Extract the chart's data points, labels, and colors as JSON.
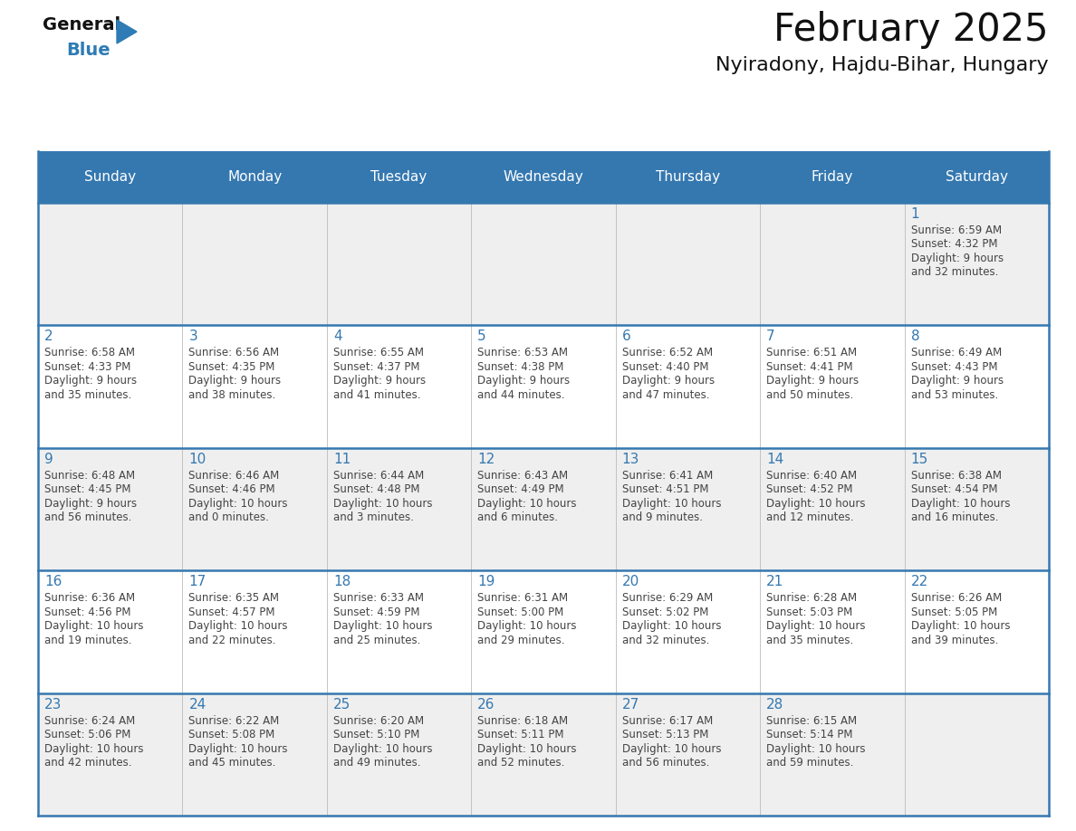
{
  "title": "February 2025",
  "subtitle": "Nyiradony, Hajdu-Bihar, Hungary",
  "header_color": "#3578B0",
  "header_text_color": "#FFFFFF",
  "cell_bg_white": "#FFFFFF",
  "cell_bg_gray": "#EFEFEF",
  "day_number_color": "#3578B0",
  "text_color": "#444444",
  "border_color": "#3578B0",
  "grid_line_color": "#BBBBBB",
  "days_of_week": [
    "Sunday",
    "Monday",
    "Tuesday",
    "Wednesday",
    "Thursday",
    "Friday",
    "Saturday"
  ],
  "weeks": [
    [
      {
        "day": "",
        "lines": []
      },
      {
        "day": "",
        "lines": []
      },
      {
        "day": "",
        "lines": []
      },
      {
        "day": "",
        "lines": []
      },
      {
        "day": "",
        "lines": []
      },
      {
        "day": "",
        "lines": []
      },
      {
        "day": "1",
        "lines": [
          "Sunrise: 6:59 AM",
          "Sunset: 4:32 PM",
          "Daylight: 9 hours",
          "and 32 minutes."
        ]
      }
    ],
    [
      {
        "day": "2",
        "lines": [
          "Sunrise: 6:58 AM",
          "Sunset: 4:33 PM",
          "Daylight: 9 hours",
          "and 35 minutes."
        ]
      },
      {
        "day": "3",
        "lines": [
          "Sunrise: 6:56 AM",
          "Sunset: 4:35 PM",
          "Daylight: 9 hours",
          "and 38 minutes."
        ]
      },
      {
        "day": "4",
        "lines": [
          "Sunrise: 6:55 AM",
          "Sunset: 4:37 PM",
          "Daylight: 9 hours",
          "and 41 minutes."
        ]
      },
      {
        "day": "5",
        "lines": [
          "Sunrise: 6:53 AM",
          "Sunset: 4:38 PM",
          "Daylight: 9 hours",
          "and 44 minutes."
        ]
      },
      {
        "day": "6",
        "lines": [
          "Sunrise: 6:52 AM",
          "Sunset: 4:40 PM",
          "Daylight: 9 hours",
          "and 47 minutes."
        ]
      },
      {
        "day": "7",
        "lines": [
          "Sunrise: 6:51 AM",
          "Sunset: 4:41 PM",
          "Daylight: 9 hours",
          "and 50 minutes."
        ]
      },
      {
        "day": "8",
        "lines": [
          "Sunrise: 6:49 AM",
          "Sunset: 4:43 PM",
          "Daylight: 9 hours",
          "and 53 minutes."
        ]
      }
    ],
    [
      {
        "day": "9",
        "lines": [
          "Sunrise: 6:48 AM",
          "Sunset: 4:45 PM",
          "Daylight: 9 hours",
          "and 56 minutes."
        ]
      },
      {
        "day": "10",
        "lines": [
          "Sunrise: 6:46 AM",
          "Sunset: 4:46 PM",
          "Daylight: 10 hours",
          "and 0 minutes."
        ]
      },
      {
        "day": "11",
        "lines": [
          "Sunrise: 6:44 AM",
          "Sunset: 4:48 PM",
          "Daylight: 10 hours",
          "and 3 minutes."
        ]
      },
      {
        "day": "12",
        "lines": [
          "Sunrise: 6:43 AM",
          "Sunset: 4:49 PM",
          "Daylight: 10 hours",
          "and 6 minutes."
        ]
      },
      {
        "day": "13",
        "lines": [
          "Sunrise: 6:41 AM",
          "Sunset: 4:51 PM",
          "Daylight: 10 hours",
          "and 9 minutes."
        ]
      },
      {
        "day": "14",
        "lines": [
          "Sunrise: 6:40 AM",
          "Sunset: 4:52 PM",
          "Daylight: 10 hours",
          "and 12 minutes."
        ]
      },
      {
        "day": "15",
        "lines": [
          "Sunrise: 6:38 AM",
          "Sunset: 4:54 PM",
          "Daylight: 10 hours",
          "and 16 minutes."
        ]
      }
    ],
    [
      {
        "day": "16",
        "lines": [
          "Sunrise: 6:36 AM",
          "Sunset: 4:56 PM",
          "Daylight: 10 hours",
          "and 19 minutes."
        ]
      },
      {
        "day": "17",
        "lines": [
          "Sunrise: 6:35 AM",
          "Sunset: 4:57 PM",
          "Daylight: 10 hours",
          "and 22 minutes."
        ]
      },
      {
        "day": "18",
        "lines": [
          "Sunrise: 6:33 AM",
          "Sunset: 4:59 PM",
          "Daylight: 10 hours",
          "and 25 minutes."
        ]
      },
      {
        "day": "19",
        "lines": [
          "Sunrise: 6:31 AM",
          "Sunset: 5:00 PM",
          "Daylight: 10 hours",
          "and 29 minutes."
        ]
      },
      {
        "day": "20",
        "lines": [
          "Sunrise: 6:29 AM",
          "Sunset: 5:02 PM",
          "Daylight: 10 hours",
          "and 32 minutes."
        ]
      },
      {
        "day": "21",
        "lines": [
          "Sunrise: 6:28 AM",
          "Sunset: 5:03 PM",
          "Daylight: 10 hours",
          "and 35 minutes."
        ]
      },
      {
        "day": "22",
        "lines": [
          "Sunrise: 6:26 AM",
          "Sunset: 5:05 PM",
          "Daylight: 10 hours",
          "and 39 minutes."
        ]
      }
    ],
    [
      {
        "day": "23",
        "lines": [
          "Sunrise: 6:24 AM",
          "Sunset: 5:06 PM",
          "Daylight: 10 hours",
          "and 42 minutes."
        ]
      },
      {
        "day": "24",
        "lines": [
          "Sunrise: 6:22 AM",
          "Sunset: 5:08 PM",
          "Daylight: 10 hours",
          "and 45 minutes."
        ]
      },
      {
        "day": "25",
        "lines": [
          "Sunrise: 6:20 AM",
          "Sunset: 5:10 PM",
          "Daylight: 10 hours",
          "and 49 minutes."
        ]
      },
      {
        "day": "26",
        "lines": [
          "Sunrise: 6:18 AM",
          "Sunset: 5:11 PM",
          "Daylight: 10 hours",
          "and 52 minutes."
        ]
      },
      {
        "day": "27",
        "lines": [
          "Sunrise: 6:17 AM",
          "Sunset: 5:13 PM",
          "Daylight: 10 hours",
          "and 56 minutes."
        ]
      },
      {
        "day": "28",
        "lines": [
          "Sunrise: 6:15 AM",
          "Sunset: 5:14 PM",
          "Daylight: 10 hours",
          "and 59 minutes."
        ]
      },
      {
        "day": "",
        "lines": []
      }
    ]
  ],
  "logo_general_color": "#111111",
  "logo_blue_color": "#2E7BB5",
  "fig_width": 11.88,
  "fig_height": 9.18
}
